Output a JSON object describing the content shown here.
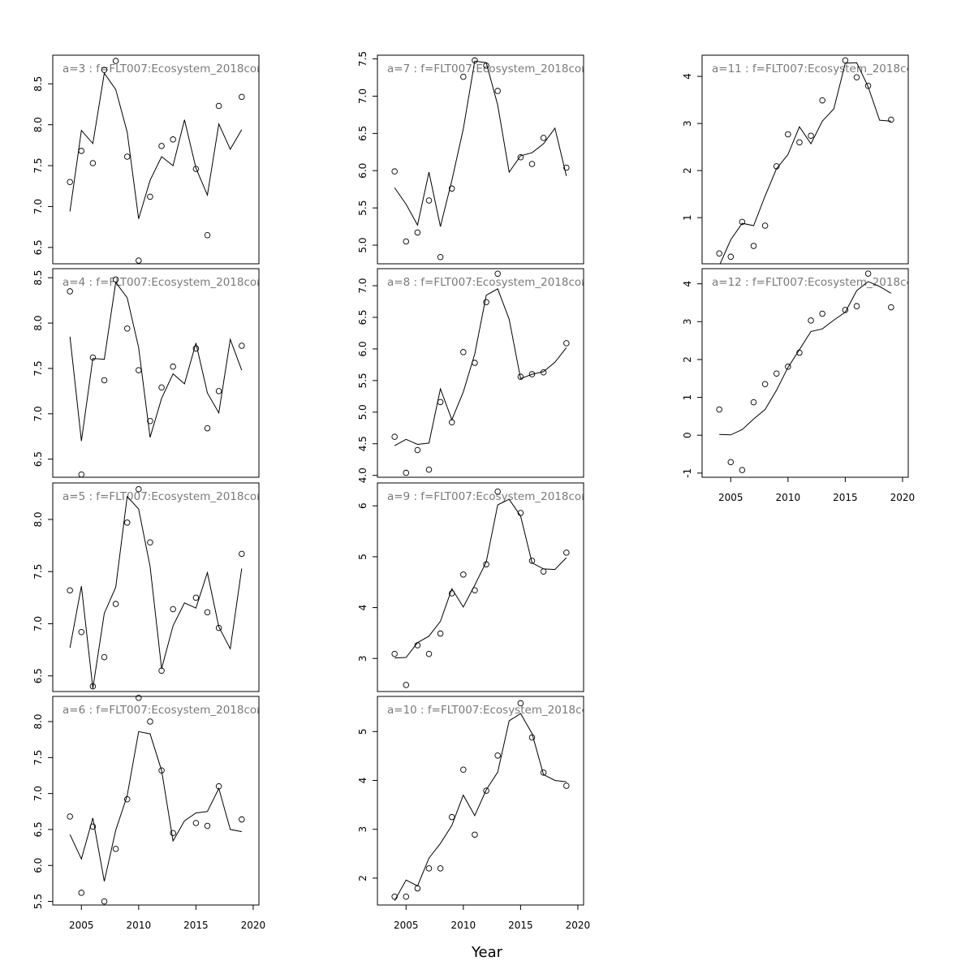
{
  "figure": {
    "xlabel": "Year"
  },
  "chart_data": [
    {
      "type": "line",
      "title": "a=3 : f=FLT007:Ecosystem_2018cor",
      "x": [
        2004,
        2005,
        2006,
        2007,
        2008,
        2009,
        2010,
        2011,
        2012,
        2013,
        2014,
        2015,
        2016,
        2017,
        2018,
        2019
      ],
      "fitted": [
        6.94,
        7.93,
        7.77,
        8.63,
        8.43,
        7.91,
        6.85,
        7.32,
        7.61,
        7.5,
        8.06,
        7.47,
        7.14,
        8.01,
        7.7,
        7.94
      ],
      "obs_x": [
        2004,
        2005,
        2006,
        2007,
        2008,
        2009,
        2010,
        2011,
        2012,
        2013,
        2015,
        2016,
        2017,
        2019
      ],
      "observed": [
        7.3,
        7.68,
        7.53,
        8.67,
        8.78,
        7.61,
        6.34,
        7.12,
        7.74,
        7.82,
        7.46,
        6.65,
        8.23,
        8.34
      ],
      "xlim": [
        2002.5,
        2020.5
      ],
      "ylim": [
        6.3,
        8.85
      ],
      "yticks": [
        6.5,
        7.0,
        7.5,
        8.0,
        8.5
      ],
      "yticklabels": [
        "6.5",
        "7.0",
        "7.5",
        "8.0",
        "8.5"
      ],
      "xticks": [],
      "xticklabels": []
    },
    {
      "type": "line",
      "title": "a=4 : f=FLT007:Ecosystem_2018cor",
      "x": [
        2004,
        2005,
        2006,
        2007,
        2008,
        2009,
        2010,
        2011,
        2012,
        2013,
        2014,
        2015,
        2016,
        2017,
        2018,
        2019
      ],
      "fitted": [
        7.85,
        6.7,
        7.61,
        7.6,
        8.45,
        8.28,
        7.73,
        6.74,
        7.17,
        7.44,
        7.33,
        7.78,
        7.23,
        7.01,
        7.82,
        7.48
      ],
      "obs_x": [
        2004,
        2005,
        2006,
        2007,
        2008,
        2009,
        2010,
        2011,
        2012,
        2013,
        2015,
        2016,
        2017,
        2019
      ],
      "observed": [
        8.35,
        6.33,
        7.62,
        7.37,
        8.48,
        7.94,
        7.48,
        6.92,
        7.29,
        7.52,
        7.72,
        6.84,
        7.25,
        7.75
      ],
      "xlim": [
        2002.5,
        2020.5
      ],
      "ylim": [
        6.3,
        8.6
      ],
      "yticks": [
        6.5,
        7.0,
        7.5,
        8.0,
        8.5
      ],
      "yticklabels": [
        "6.5",
        "7.0",
        "7.5",
        "8.0",
        "8.5"
      ],
      "xticks": [],
      "xticklabels": []
    },
    {
      "type": "line",
      "title": "a=5 : f=FLT007:Ecosystem_2018cor",
      "x": [
        2004,
        2005,
        2006,
        2007,
        2008,
        2009,
        2010,
        2011,
        2012,
        2013,
        2014,
        2015,
        2016,
        2017,
        2018,
        2019
      ],
      "fitted": [
        6.77,
        7.36,
        6.38,
        7.1,
        7.35,
        8.22,
        8.1,
        7.55,
        6.57,
        6.98,
        7.2,
        7.15,
        7.49,
        6.97,
        6.76,
        7.53
      ],
      "obs_x": [
        2004,
        2005,
        2006,
        2007,
        2008,
        2009,
        2010,
        2011,
        2012,
        2013,
        2015,
        2016,
        2017,
        2019
      ],
      "observed": [
        7.32,
        6.92,
        6.4,
        6.68,
        7.19,
        7.97,
        8.29,
        7.78,
        6.55,
        7.14,
        7.25,
        7.11,
        6.96,
        7.67
      ],
      "xlim": [
        2002.5,
        2020.5
      ],
      "ylim": [
        6.35,
        8.35
      ],
      "yticks": [
        6.5,
        7.0,
        7.5,
        8.0
      ],
      "yticklabels": [
        "6.5",
        "7.0",
        "7.5",
        "8.0"
      ],
      "xticks": [],
      "xticklabels": []
    },
    {
      "type": "line",
      "title": "a=6 : f=FLT007:Ecosystem_2018cor",
      "x": [
        2004,
        2005,
        2006,
        2007,
        2008,
        2009,
        2010,
        2011,
        2012,
        2013,
        2014,
        2015,
        2016,
        2017,
        2018,
        2019
      ],
      "fitted": [
        6.43,
        6.09,
        6.66,
        5.78,
        6.49,
        6.97,
        7.86,
        7.83,
        7.32,
        6.34,
        6.62,
        6.73,
        6.75,
        7.07,
        6.5,
        6.47
      ],
      "obs_x": [
        2004,
        2005,
        2006,
        2007,
        2008,
        2009,
        2010,
        2011,
        2012,
        2013,
        2015,
        2016,
        2017,
        2019
      ],
      "observed": [
        6.68,
        5.62,
        6.54,
        5.5,
        6.23,
        6.92,
        8.33,
        8.0,
        7.32,
        6.45,
        6.59,
        6.55,
        7.1,
        6.64
      ],
      "xlim": [
        2002.5,
        2020.5
      ],
      "ylim": [
        5.45,
        8.35
      ],
      "yticks": [
        5.5,
        6.0,
        6.5,
        7.0,
        7.5,
        8.0
      ],
      "yticklabels": [
        "5.5",
        "6.0",
        "6.5",
        "7.0",
        "7.5",
        "8.0"
      ],
      "xticks": [
        2005,
        2010,
        2015,
        2020
      ],
      "xticklabels": [
        "2005",
        "2010",
        "2015",
        "2020"
      ]
    },
    {
      "type": "line",
      "title": "a=7 : f=FLT007:Ecosystem_2018cor",
      "x": [
        2004,
        2005,
        2006,
        2007,
        2008,
        2009,
        2010,
        2011,
        2012,
        2013,
        2014,
        2015,
        2016,
        2017,
        2018,
        2019
      ],
      "fitted": [
        5.77,
        5.55,
        5.27,
        5.98,
        5.25,
        5.87,
        6.56,
        7.47,
        7.45,
        6.88,
        5.98,
        6.2,
        6.24,
        6.36,
        6.57,
        5.93
      ],
      "obs_x": [
        2004,
        2005,
        2006,
        2007,
        2008,
        2009,
        2010,
        2011,
        2012,
        2013,
        2015,
        2016,
        2017,
        2019
      ],
      "observed": [
        5.99,
        5.05,
        5.17,
        5.6,
        4.84,
        5.76,
        7.26,
        7.48,
        7.41,
        7.07,
        6.18,
        6.09,
        6.44,
        6.04
      ],
      "xlim": [
        2002.5,
        2020.5
      ],
      "ylim": [
        4.75,
        7.55
      ],
      "yticks": [
        5.0,
        5.5,
        6.0,
        6.5,
        7.0,
        7.5
      ],
      "yticklabels": [
        "5.0",
        "5.5",
        "6.0",
        "6.5",
        "7.0",
        "7.5"
      ],
      "xticks": [],
      "xticklabels": []
    },
    {
      "type": "line",
      "title": "a=8 : f=FLT007:Ecosystem_2018cor",
      "x": [
        2004,
        2005,
        2006,
        2007,
        2008,
        2009,
        2010,
        2011,
        2012,
        2013,
        2014,
        2015,
        2016,
        2017,
        2018,
        2019
      ],
      "fitted": [
        4.47,
        4.57,
        4.49,
        4.51,
        5.37,
        4.88,
        5.32,
        5.92,
        6.85,
        6.95,
        6.47,
        5.53,
        5.6,
        5.64,
        5.79,
        6.02
      ],
      "obs_x": [
        2004,
        2005,
        2006,
        2007,
        2008,
        2009,
        2010,
        2011,
        2012,
        2013,
        2015,
        2016,
        2017,
        2019
      ],
      "observed": [
        4.61,
        4.04,
        4.4,
        4.09,
        5.16,
        4.84,
        5.95,
        5.78,
        6.74,
        7.19,
        5.56,
        5.6,
        5.63,
        6.09
      ],
      "xlim": [
        2002.5,
        2020.5
      ],
      "ylim": [
        3.97,
        7.27
      ],
      "yticks": [
        4.0,
        4.5,
        5.0,
        5.5,
        6.0,
        6.5,
        7.0
      ],
      "yticklabels": [
        "4.0",
        "4.5",
        "5.0",
        "5.5",
        "6.0",
        "6.5",
        "7.0"
      ],
      "xticks": [],
      "xticklabels": []
    },
    {
      "type": "line",
      "title": "a=9 : f=FLT007:Ecosystem_2018cor",
      "x": [
        2004,
        2005,
        2006,
        2007,
        2008,
        2009,
        2010,
        2011,
        2012,
        2013,
        2014,
        2015,
        2016,
        2017,
        2018,
        2019
      ],
      "fitted": [
        3.01,
        3.02,
        3.31,
        3.44,
        3.73,
        4.37,
        4.01,
        4.44,
        4.9,
        6.02,
        6.13,
        5.8,
        4.88,
        4.76,
        4.75,
        4.98
      ],
      "obs_x": [
        2004,
        2005,
        2006,
        2007,
        2008,
        2009,
        2010,
        2011,
        2012,
        2013,
        2015,
        2016,
        2017,
        2019
      ],
      "observed": [
        3.09,
        2.48,
        3.26,
        3.09,
        3.49,
        4.28,
        4.65,
        4.34,
        4.85,
        6.28,
        5.86,
        4.92,
        4.71,
        5.08
      ],
      "xlim": [
        2002.5,
        2020.5
      ],
      "ylim": [
        2.35,
        6.45
      ],
      "yticks": [
        3,
        4,
        5,
        6
      ],
      "yticklabels": [
        "3",
        "4",
        "5",
        "6"
      ],
      "xticks": [],
      "xticklabels": []
    },
    {
      "type": "line",
      "title": "a=10 : f=FLT007:Ecosystem_2018cor",
      "x": [
        2004,
        2005,
        2006,
        2007,
        2008,
        2009,
        2010,
        2011,
        2012,
        2013,
        2014,
        2015,
        2016,
        2017,
        2018,
        2019
      ],
      "fitted": [
        1.54,
        1.96,
        1.84,
        2.41,
        2.71,
        3.08,
        3.7,
        3.28,
        3.81,
        4.17,
        5.22,
        5.37,
        4.96,
        4.12,
        4.0,
        3.97
      ],
      "obs_x": [
        2004,
        2005,
        2006,
        2007,
        2008,
        2009,
        2010,
        2011,
        2012,
        2013,
        2015,
        2016,
        2017,
        2019
      ],
      "observed": [
        1.62,
        1.62,
        1.79,
        2.2,
        2.2,
        3.25,
        4.22,
        2.89,
        3.79,
        4.51,
        5.58,
        4.88,
        4.16,
        3.89
      ],
      "xlim": [
        2002.5,
        2020.5
      ],
      "ylim": [
        1.45,
        5.72
      ],
      "yticks": [
        2,
        3,
        4,
        5
      ],
      "yticklabels": [
        "2",
        "3",
        "4",
        "5"
      ],
      "xticks": [
        2005,
        2010,
        2015,
        2020
      ],
      "xticklabels": [
        "2005",
        "2010",
        "2015",
        "2020"
      ]
    },
    {
      "type": "line",
      "title": "a=11 : f=FLT007:Ecosystem_2018cor",
      "x": [
        2004,
        2005,
        2006,
        2007,
        2008,
        2009,
        2010,
        2011,
        2012,
        2013,
        2014,
        2015,
        2016,
        2017,
        2018,
        2019
      ],
      "fitted": [
        -0.02,
        0.53,
        0.88,
        0.83,
        1.46,
        2.04,
        2.34,
        2.93,
        2.57,
        3.05,
        3.31,
        4.28,
        4.29,
        3.78,
        3.07,
        3.05
      ],
      "obs_x": [
        2004,
        2005,
        2006,
        2007,
        2008,
        2009,
        2010,
        2011,
        2012,
        2013,
        2015,
        2016,
        2017,
        2019
      ],
      "observed": [
        0.24,
        0.17,
        0.91,
        0.4,
        0.83,
        2.09,
        2.77,
        2.6,
        2.74,
        3.49,
        4.34,
        3.98,
        3.8,
        3.08
      ],
      "xlim": [
        2002.5,
        2020.5
      ],
      "ylim": [
        0.02,
        4.45
      ],
      "yticks": [
        1,
        2,
        3,
        4
      ],
      "yticklabels": [
        "1",
        "2",
        "3",
        "4"
      ],
      "xticks": [],
      "xticklabels": []
    },
    {
      "type": "line",
      "title": "a=12 : f=FLT007:Ecosystem_2018cor",
      "x": [
        2004,
        2005,
        2006,
        2007,
        2008,
        2009,
        2010,
        2011,
        2012,
        2013,
        2014,
        2015,
        2016,
        2017,
        2018,
        2019
      ],
      "fitted": [
        0.02,
        0.01,
        0.15,
        0.43,
        0.68,
        1.19,
        1.79,
        2.26,
        2.74,
        2.81,
        3.04,
        3.25,
        3.82,
        4.06,
        3.93,
        3.75
      ],
      "obs_x": [
        2004,
        2005,
        2006,
        2007,
        2008,
        2009,
        2010,
        2011,
        2012,
        2013,
        2015,
        2016,
        2017,
        2019
      ],
      "observed": [
        0.68,
        -0.71,
        -0.92,
        0.87,
        1.35,
        1.63,
        1.81,
        2.18,
        3.03,
        3.21,
        3.31,
        3.41,
        4.27,
        3.38
      ],
      "xlim": [
        2002.5,
        2020.5
      ],
      "ylim": [
        -1.11,
        4.4
      ],
      "yticks": [
        -1,
        0,
        1,
        2,
        3,
        4
      ],
      "yticklabels": [
        "-1",
        "0",
        "1",
        "2",
        "3",
        "4"
      ],
      "xticks": [
        2005,
        2010,
        2015,
        2020
      ],
      "xticklabels": [
        "2005",
        "2010",
        "2015",
        "2020"
      ]
    }
  ]
}
